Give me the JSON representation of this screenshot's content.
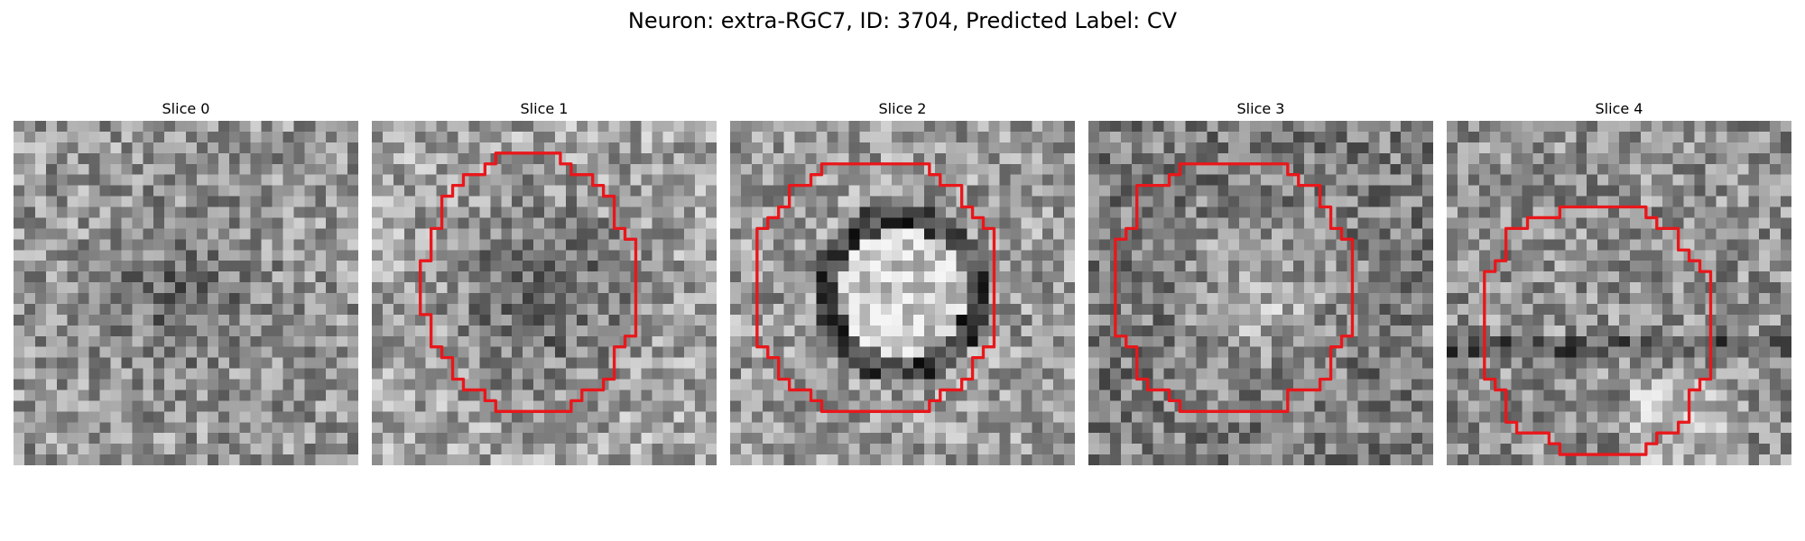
{
  "figure": {
    "title": "Neuron: extra-RGC7, ID: 3704, Predicted Label: CV"
  },
  "overlay_color": "#e8171b",
  "slices": [
    {
      "title": "Slice 0",
      "pattern": "dark-center",
      "contour": []
    },
    {
      "title": "Slice 1",
      "pattern": "dark-blob",
      "contour": [
        [
          11.5,
          3
        ],
        [
          17.5,
          3
        ],
        [
          17.5,
          4
        ],
        [
          18.5,
          4
        ],
        [
          18.5,
          5
        ],
        [
          20.5,
          5
        ],
        [
          20.5,
          6
        ],
        [
          21.5,
          6
        ],
        [
          21.5,
          7
        ],
        [
          22.5,
          7
        ],
        [
          22.5,
          10
        ],
        [
          23.5,
          10
        ],
        [
          23.5,
          11
        ],
        [
          24.5,
          11
        ],
        [
          24.5,
          20
        ],
        [
          23.5,
          20
        ],
        [
          23.5,
          21
        ],
        [
          22.5,
          21
        ],
        [
          22.5,
          24
        ],
        [
          21.5,
          24
        ],
        [
          21.5,
          25
        ],
        [
          19.5,
          25
        ],
        [
          19.5,
          26
        ],
        [
          18.5,
          26
        ],
        [
          18.5,
          27
        ],
        [
          11.5,
          27
        ],
        [
          11.5,
          26
        ],
        [
          10.5,
          26
        ],
        [
          10.5,
          25
        ],
        [
          8.5,
          25
        ],
        [
          8.5,
          24
        ],
        [
          7.5,
          24
        ],
        [
          7.5,
          22
        ],
        [
          6.5,
          22
        ],
        [
          6.5,
          21
        ],
        [
          5.5,
          21
        ],
        [
          5.5,
          18
        ],
        [
          4.5,
          18
        ],
        [
          4.5,
          13
        ],
        [
          5.5,
          13
        ],
        [
          5.5,
          10
        ],
        [
          6.5,
          10
        ],
        [
          6.5,
          7
        ],
        [
          7.5,
          7
        ],
        [
          7.5,
          6
        ],
        [
          8.5,
          6
        ],
        [
          8.5,
          5
        ],
        [
          10.5,
          5
        ],
        [
          10.5,
          4
        ],
        [
          11.5,
          4
        ]
      ]
    },
    {
      "title": "Slice 2",
      "pattern": "bright-ring",
      "contour": [
        [
          8.5,
          4
        ],
        [
          18.5,
          4
        ],
        [
          18.5,
          5
        ],
        [
          19.5,
          5
        ],
        [
          19.5,
          6
        ],
        [
          21.5,
          6
        ],
        [
          21.5,
          8
        ],
        [
          22.5,
          8
        ],
        [
          22.5,
          9
        ],
        [
          23.5,
          9
        ],
        [
          23.5,
          10
        ],
        [
          24.5,
          10
        ],
        [
          24.5,
          21
        ],
        [
          23.5,
          21
        ],
        [
          23.5,
          22
        ],
        [
          22.5,
          22
        ],
        [
          22.5,
          24
        ],
        [
          21.5,
          24
        ],
        [
          21.5,
          25
        ],
        [
          19.5,
          25
        ],
        [
          19.5,
          26
        ],
        [
          18.5,
          26
        ],
        [
          18.5,
          27
        ],
        [
          8.5,
          27
        ],
        [
          8.5,
          26
        ],
        [
          7.5,
          26
        ],
        [
          7.5,
          25
        ],
        [
          5.5,
          25
        ],
        [
          5.5,
          24
        ],
        [
          4.5,
          24
        ],
        [
          4.5,
          22
        ],
        [
          3.5,
          22
        ],
        [
          3.5,
          21
        ],
        [
          2.5,
          21
        ],
        [
          2.5,
          10
        ],
        [
          3.5,
          10
        ],
        [
          3.5,
          9
        ],
        [
          4.5,
          9
        ],
        [
          4.5,
          8
        ],
        [
          5.5,
          8
        ],
        [
          5.5,
          6
        ],
        [
          7.5,
          6
        ],
        [
          7.5,
          5
        ],
        [
          8.5,
          5
        ]
      ]
    },
    {
      "title": "Slice 3",
      "pattern": "bright-center",
      "contour": [
        [
          8.5,
          4
        ],
        [
          18.5,
          4
        ],
        [
          18.5,
          5
        ],
        [
          19.5,
          5
        ],
        [
          19.5,
          6
        ],
        [
          21.5,
          6
        ],
        [
          21.5,
          8
        ],
        [
          22.5,
          8
        ],
        [
          22.5,
          10
        ],
        [
          23.5,
          10
        ],
        [
          23.5,
          11
        ],
        [
          24.5,
          11
        ],
        [
          24.5,
          20
        ],
        [
          23.5,
          20
        ],
        [
          23.5,
          21
        ],
        [
          22.5,
          21
        ],
        [
          22.5,
          24
        ],
        [
          21.5,
          24
        ],
        [
          21.5,
          25
        ],
        [
          18.5,
          25
        ],
        [
          18.5,
          26
        ],
        [
          18.5,
          27
        ],
        [
          8.5,
          27
        ],
        [
          8.5,
          26
        ],
        [
          7.5,
          26
        ],
        [
          7.5,
          25
        ],
        [
          5.5,
          25
        ],
        [
          5.5,
          24
        ],
        [
          4.5,
          24
        ],
        [
          4.5,
          21
        ],
        [
          3.5,
          21
        ],
        [
          3.5,
          20
        ],
        [
          2.5,
          20
        ],
        [
          2.5,
          11
        ],
        [
          3.5,
          11
        ],
        [
          3.5,
          10
        ],
        [
          4.5,
          10
        ],
        [
          4.5,
          6
        ],
        [
          7.5,
          6
        ],
        [
          7.5,
          5
        ],
        [
          8.5,
          5
        ]
      ]
    },
    {
      "title": "Slice 4",
      "pattern": "mixed",
      "contour": [
        [
          10.5,
          8
        ],
        [
          18.5,
          8
        ],
        [
          18.5,
          9
        ],
        [
          19.5,
          9
        ],
        [
          19.5,
          10
        ],
        [
          21.5,
          10
        ],
        [
          21.5,
          12
        ],
        [
          22.5,
          12
        ],
        [
          22.5,
          13
        ],
        [
          23.5,
          13
        ],
        [
          23.5,
          14
        ],
        [
          24.5,
          14
        ],
        [
          24.5,
          24
        ],
        [
          23.5,
          24
        ],
        [
          23.5,
          25
        ],
        [
          22.5,
          25
        ],
        [
          22.5,
          28
        ],
        [
          21.5,
          28
        ],
        [
          21.5,
          29
        ],
        [
          19.5,
          29
        ],
        [
          19.5,
          30
        ],
        [
          18.5,
          30
        ],
        [
          18.5,
          31
        ],
        [
          10.5,
          31
        ],
        [
          10.5,
          30
        ],
        [
          9.5,
          30
        ],
        [
          9.5,
          29
        ],
        [
          6.5,
          29
        ],
        [
          6.5,
          28
        ],
        [
          5.5,
          28
        ],
        [
          5.5,
          25
        ],
        [
          4.5,
          25
        ],
        [
          4.5,
          24
        ],
        [
          3.5,
          24
        ],
        [
          3.5,
          14
        ],
        [
          4.5,
          14
        ],
        [
          4.5,
          13
        ],
        [
          5.5,
          13
        ],
        [
          5.5,
          10
        ],
        [
          7.5,
          10
        ],
        [
          7.5,
          9
        ],
        [
          10.5,
          9
        ]
      ]
    }
  ]
}
